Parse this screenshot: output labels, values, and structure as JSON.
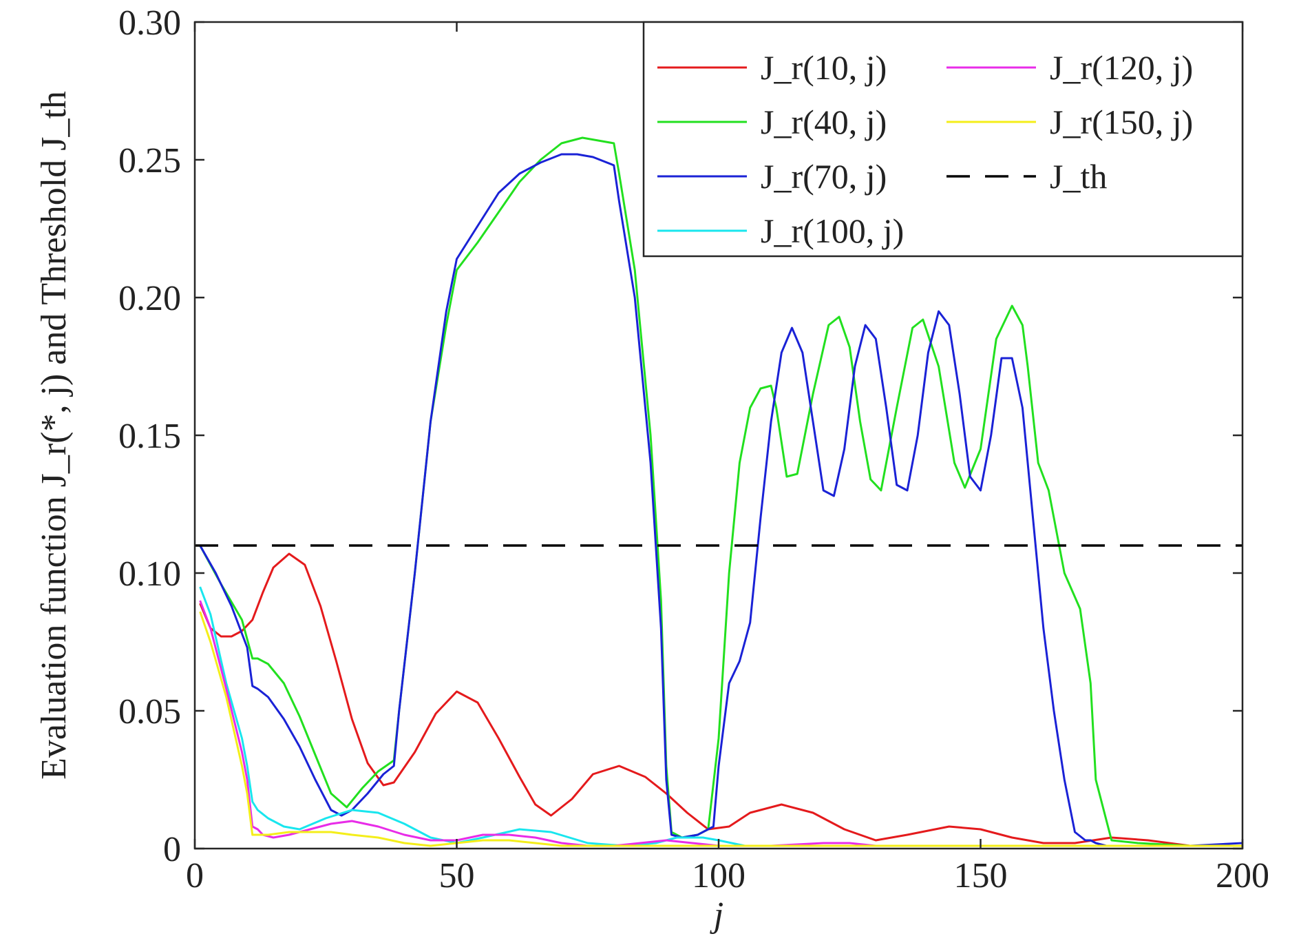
{
  "chart_data": {
    "type": "line",
    "xlabel": "j",
    "ylabel": "Evaluation function J_r(*, j) and Threshold J_th",
    "xlim": [
      0,
      200
    ],
    "ylim": [
      0,
      0.3
    ],
    "xticks": [
      0,
      50,
      100,
      150,
      200
    ],
    "xtick_labels": [
      "0",
      "50",
      "100",
      "150",
      "200"
    ],
    "yticks": [
      0,
      0.05,
      0.1,
      0.15,
      0.2,
      0.25,
      0.3
    ],
    "ytick_labels": [
      "0",
      "0.05",
      "0.10",
      "0.15",
      "0.20",
      "0.25",
      "0.30"
    ],
    "grid": false,
    "legend_position": "top-right",
    "series": [
      {
        "name": "J_r(10, j)",
        "color": "#e41a1c",
        "x": [
          1,
          3,
          5,
          7,
          9,
          11,
          13,
          15,
          18,
          21,
          24,
          27,
          30,
          33,
          36,
          38,
          42,
          46,
          50,
          54,
          58,
          62,
          65,
          68,
          72,
          76,
          81,
          86,
          90,
          94,
          98,
          102,
          106,
          112,
          118,
          124,
          130,
          136,
          144,
          150,
          156,
          162,
          168,
          175,
          182,
          190,
          200
        ],
        "y": [
          0.089,
          0.08,
          0.077,
          0.077,
          0.079,
          0.083,
          0.093,
          0.102,
          0.107,
          0.103,
          0.088,
          0.068,
          0.047,
          0.031,
          0.023,
          0.024,
          0.035,
          0.049,
          0.057,
          0.053,
          0.04,
          0.026,
          0.016,
          0.012,
          0.018,
          0.027,
          0.03,
          0.026,
          0.02,
          0.013,
          0.007,
          0.008,
          0.013,
          0.016,
          0.013,
          0.007,
          0.003,
          0.005,
          0.008,
          0.007,
          0.004,
          0.002,
          0.002,
          0.004,
          0.003,
          0.001,
          0.001
        ]
      },
      {
        "name": "J_r(40, j)",
        "color": "#22e01f",
        "x": [
          1,
          5,
          9,
          11,
          12,
          14,
          17,
          20,
          23,
          26,
          29,
          32,
          35,
          38,
          39,
          42,
          45,
          48,
          50,
          54,
          58,
          62,
          66,
          70,
          74,
          77,
          80,
          81,
          84,
          87,
          89,
          90,
          91,
          93,
          96,
          98,
          100,
          102,
          104,
          106,
          108,
          110,
          111,
          113,
          115,
          118,
          121,
          123,
          125,
          127,
          129,
          131,
          134,
          137,
          139,
          142,
          145,
          147,
          150,
          153,
          156,
          158,
          159,
          161,
          163,
          166,
          169,
          171,
          172,
          175,
          180,
          190,
          200
        ],
        "y": [
          0.11,
          0.096,
          0.083,
          0.069,
          0.069,
          0.067,
          0.06,
          0.048,
          0.034,
          0.02,
          0.015,
          0.022,
          0.028,
          0.032,
          0.05,
          0.1,
          0.155,
          0.19,
          0.21,
          0.22,
          0.231,
          0.242,
          0.25,
          0.256,
          0.258,
          0.257,
          0.256,
          0.245,
          0.21,
          0.15,
          0.09,
          0.03,
          0.006,
          0.004,
          0.005,
          0.007,
          0.04,
          0.1,
          0.14,
          0.16,
          0.167,
          0.168,
          0.16,
          0.135,
          0.136,
          0.165,
          0.19,
          0.193,
          0.182,
          0.155,
          0.134,
          0.13,
          0.16,
          0.189,
          0.192,
          0.175,
          0.14,
          0.131,
          0.145,
          0.185,
          0.197,
          0.19,
          0.175,
          0.14,
          0.13,
          0.1,
          0.087,
          0.06,
          0.025,
          0.003,
          0.002,
          0.001,
          0.001
        ]
      },
      {
        "name": "J_r(70, j)",
        "color": "#1a22d6",
        "x": [
          1,
          4,
          7,
          10,
          11,
          12,
          14,
          17,
          20,
          23,
          26,
          28,
          30,
          33,
          36,
          38,
          39,
          42,
          45,
          48,
          50,
          54,
          58,
          62,
          66,
          70,
          73,
          76,
          80,
          81,
          84,
          87,
          89,
          90,
          91,
          93,
          96,
          98,
          99,
          100,
          102,
          104,
          106,
          108,
          110,
          112,
          114,
          116,
          118,
          120,
          122,
          124,
          126,
          128,
          130,
          132,
          134,
          136,
          138,
          140,
          142,
          144,
          146,
          148,
          150,
          152,
          154,
          156,
          158,
          160,
          162,
          164,
          166,
          168,
          170,
          171,
          172,
          174,
          180,
          190,
          200
        ],
        "y": [
          0.11,
          0.1,
          0.088,
          0.073,
          0.059,
          0.058,
          0.055,
          0.047,
          0.037,
          0.025,
          0.014,
          0.012,
          0.014,
          0.02,
          0.027,
          0.03,
          0.05,
          0.1,
          0.155,
          0.195,
          0.214,
          0.226,
          0.238,
          0.245,
          0.249,
          0.252,
          0.252,
          0.251,
          0.248,
          0.235,
          0.2,
          0.14,
          0.08,
          0.025,
          0.005,
          0.004,
          0.005,
          0.007,
          0.008,
          0.03,
          0.06,
          0.068,
          0.082,
          0.12,
          0.155,
          0.18,
          0.189,
          0.18,
          0.155,
          0.13,
          0.128,
          0.145,
          0.175,
          0.19,
          0.185,
          0.16,
          0.132,
          0.13,
          0.15,
          0.18,
          0.195,
          0.19,
          0.165,
          0.135,
          0.13,
          0.15,
          0.178,
          0.178,
          0.16,
          0.12,
          0.08,
          0.05,
          0.025,
          0.006,
          0.003,
          0.003,
          0.002,
          0.001,
          0.001,
          0.001,
          0.002
        ]
      },
      {
        "name": "J_r(100, j)",
        "color": "#19e6ee",
        "x": [
          1,
          3,
          6,
          9,
          10,
          11,
          12,
          14,
          17,
          20,
          25,
          30,
          35,
          40,
          45,
          50,
          55,
          62,
          68,
          75,
          82,
          88,
          92,
          97,
          100,
          105,
          110,
          120,
          130,
          140,
          150,
          160,
          170,
          180,
          190,
          200
        ],
        "y": [
          0.095,
          0.085,
          0.06,
          0.04,
          0.03,
          0.017,
          0.014,
          0.011,
          0.008,
          0.007,
          0.011,
          0.014,
          0.013,
          0.009,
          0.004,
          0.002,
          0.004,
          0.007,
          0.006,
          0.002,
          0.001,
          0.002,
          0.004,
          0.004,
          0.003,
          0.001,
          0.001,
          0.001,
          0.001,
          0.001,
          0.001,
          0.001,
          0.001,
          0.001,
          0.001,
          0.001
        ]
      },
      {
        "name": "J_r(120, j)",
        "color": "#e82ce8",
        "x": [
          1,
          3,
          6,
          9,
          10,
          11,
          12,
          13,
          15,
          18,
          22,
          26,
          30,
          35,
          40,
          45,
          50,
          55,
          60,
          65,
          70,
          75,
          80,
          85,
          90,
          95,
          100,
          110,
          120,
          125,
          130,
          140,
          150,
          160,
          170,
          180,
          190,
          200
        ],
        "y": [
          0.09,
          0.08,
          0.058,
          0.035,
          0.025,
          0.008,
          0.007,
          0.005,
          0.004,
          0.005,
          0.007,
          0.009,
          0.01,
          0.008,
          0.005,
          0.003,
          0.003,
          0.005,
          0.005,
          0.004,
          0.002,
          0.001,
          0.001,
          0.002,
          0.003,
          0.002,
          0.001,
          0.001,
          0.002,
          0.002,
          0.001,
          0.001,
          0.001,
          0.001,
          0.001,
          0.001,
          0.001,
          0.001
        ]
      },
      {
        "name": "J_r(150, j)",
        "color": "#f4ee1a",
        "x": [
          1,
          3,
          6,
          9,
          10,
          11,
          12,
          14,
          18,
          22,
          26,
          30,
          35,
          40,
          45,
          50,
          55,
          60,
          65,
          70,
          80,
          90,
          100,
          110,
          120,
          130,
          140,
          150,
          160,
          170,
          180,
          190,
          200
        ],
        "y": [
          0.086,
          0.075,
          0.055,
          0.03,
          0.02,
          0.005,
          0.005,
          0.005,
          0.006,
          0.006,
          0.006,
          0.005,
          0.004,
          0.002,
          0.001,
          0.002,
          0.003,
          0.003,
          0.002,
          0.001,
          0.001,
          0.001,
          0.001,
          0.001,
          0.001,
          0.001,
          0.001,
          0.001,
          0.001,
          0.001,
          0.001,
          0.001,
          0.001
        ]
      },
      {
        "name": "J_th",
        "color": "#000000",
        "dashed": true,
        "x": [
          0,
          200
        ],
        "y": [
          0.11,
          0.11
        ]
      }
    ]
  }
}
